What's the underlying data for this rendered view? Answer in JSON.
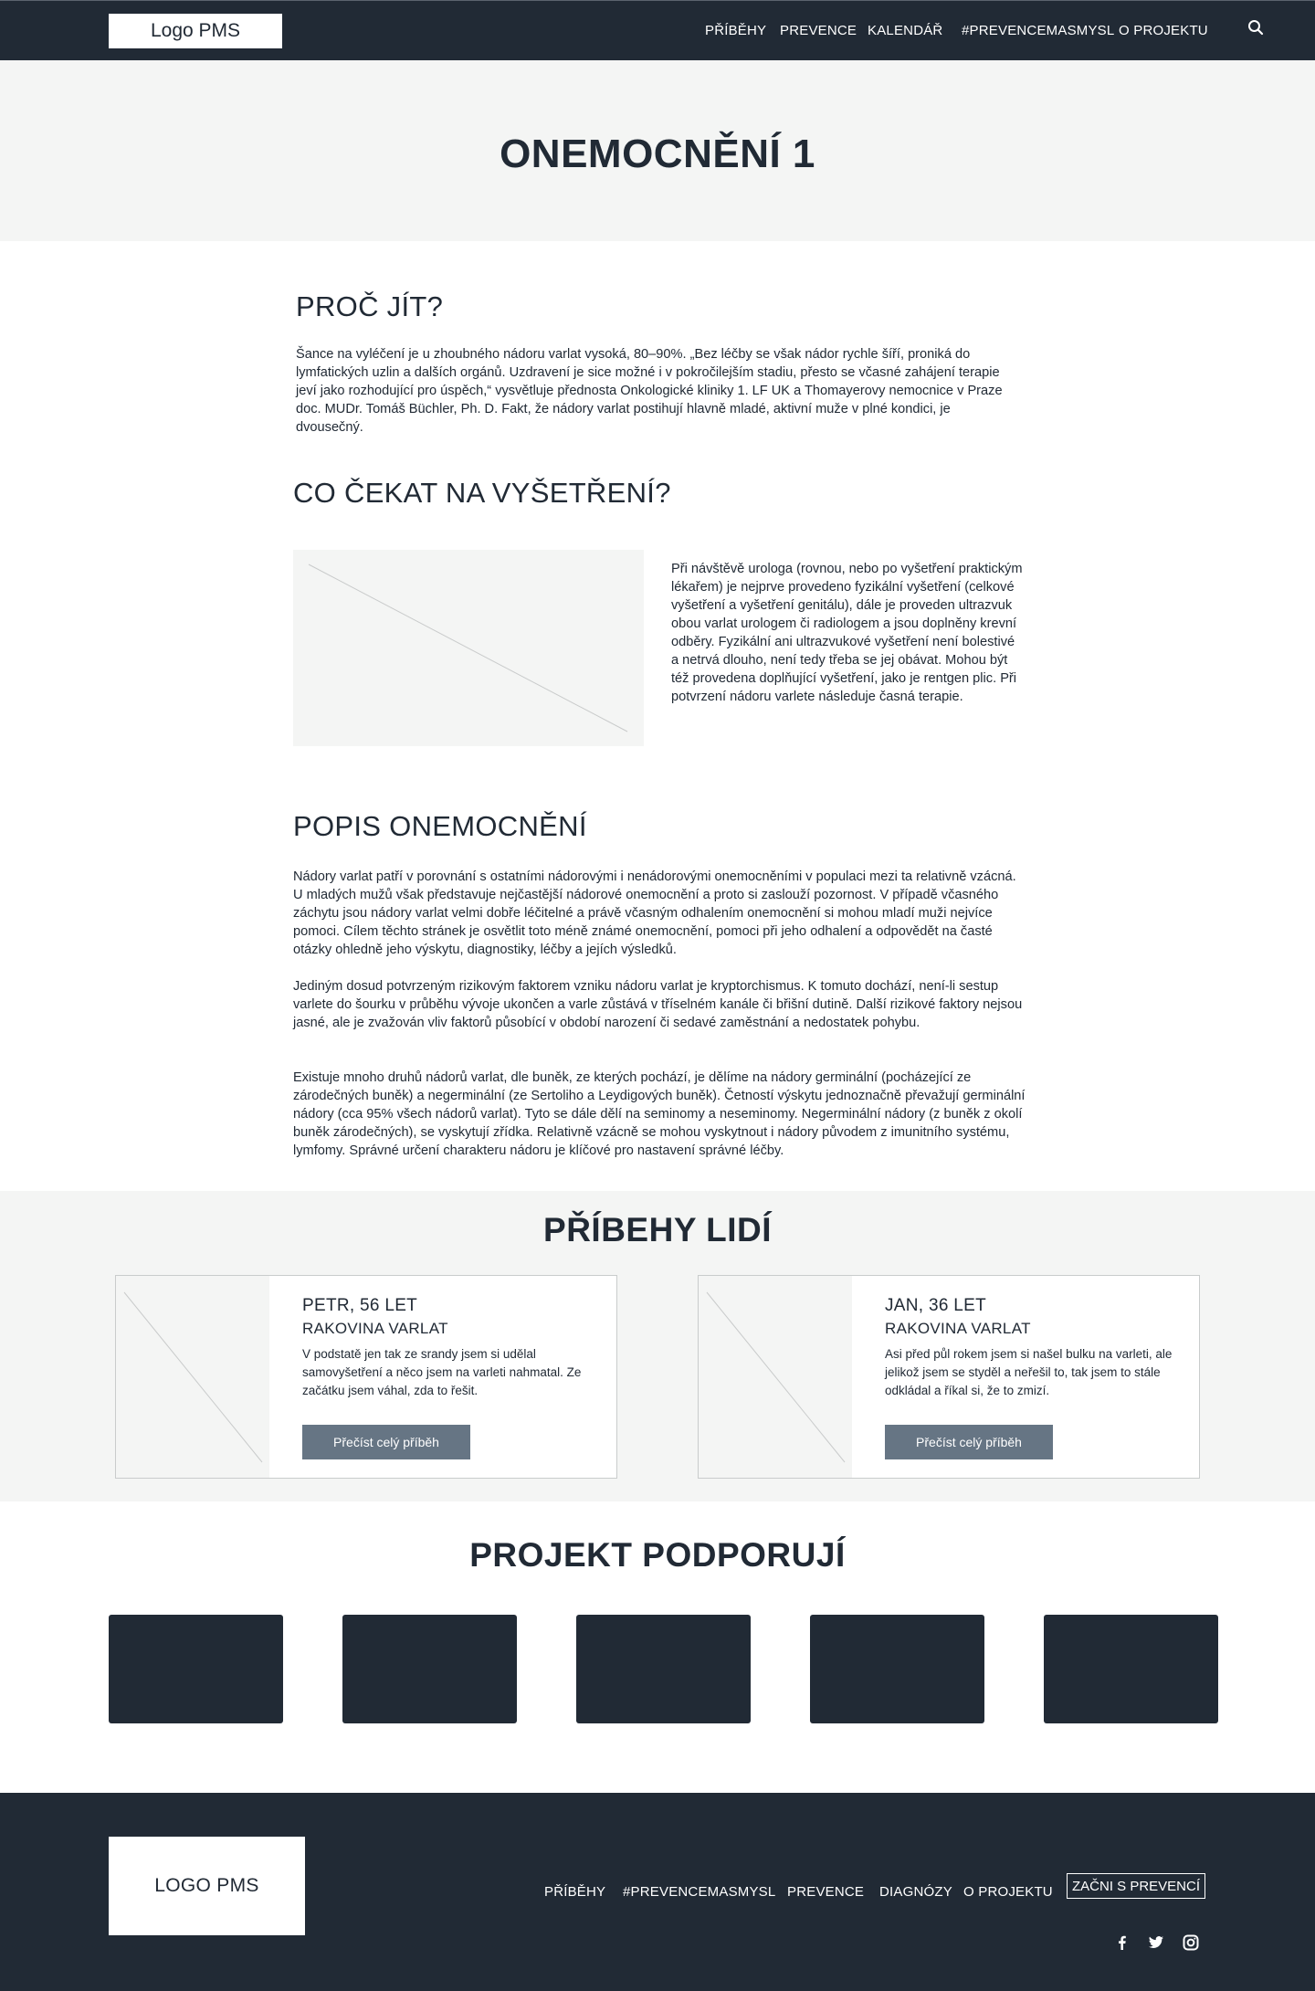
{
  "nav": {
    "logo": "Logo PMS",
    "items": [
      "PŘÍBĚHY",
      "PREVENCE",
      "KALENDÁŘ",
      "#PREVENCEMASMYSL",
      "O PROJEKTU"
    ],
    "search_icon": "search-icon"
  },
  "hero": {
    "title": "ONEMOCNĚNÍ 1"
  },
  "why": {
    "title": "PROČ JÍT?",
    "text": "Šance na vyléčení je u zhoubného nádoru varlat vysoká, 80–90%. „Bez léčby se však nádor rychle šíří, proniká do lymfatických uzlin a dalších orgánů. Uzdravení je sice možné i v pokročilejším stadiu, přesto se včasné zahájení terapie jeví jako rozhodující pro úspěch,“ vysvětluje přednosta Onkologické kliniky 1. LF UK a Thomayerovy nemocnice v Praze doc. MUDr. Tomáš Büchler, Ph. D. Fakt, že nádory varlat postihují hlavně mladé, aktivní muže v plné kondici, je dvousečný."
  },
  "exam": {
    "title": "CO ČEKAT NA VYŠETŘENÍ?",
    "text": "Při návštěvě urologa (rovnou, nebo po vyšetření praktickým lékařem) je nejprve provedeno fyzikální vyšetření (celkové vyšetření a vyšetření genitálu), dále je proveden ultrazvuk obou varlat urologem či radiologem a jsou doplněny krevní odběry. Fyzikální ani ultrazvukové vyšetření není bolestivé a netrvá dlouho, není tedy třeba se jej obávat. Mohou být též provedena doplňující vyšetření, jako je rentgen plic. Při potvrzení nádoru varlete následuje časná terapie."
  },
  "desc": {
    "title": "POPIS ONEMOCNĚNÍ",
    "paragraphs": [
      "Nádory varlat patří v porovnání s ostatními nádorovými i nenádorovými onemocněními v populaci mezi ta relativně vzácná. U mladých mužů však představuje nejčastější nádorové onemocnění a proto si zaslouží pozornost. V případě včasného záchytu jsou nádory varlat velmi dobře léčitelné a právě včasným odhalením onemocnění si mohou mladí muži nejvíce pomoci. Cílem těchto stránek je osvětlit toto méně známé onemocnění, pomoci při jeho odhalení a odpovědět na časté otázky ohledně jeho výskytu, diagnostiky, léčby a jejích výsledků.",
      "Jediným dosud potvrzeným rizikovým faktorem vzniku nádoru varlat je kryptorchismus. K tomuto dochází, není-li sestup varlete do šourku v průběhu vývoje ukončen a varle zůstává v tříselném kanále či břišní dutině. Další rizikové faktory nejsou jasné, ale je zvažován vliv faktorů působící v období narození či sedavé zaměstnání a nedostatek pohybu.",
      "Existuje mnoho druhů nádorů varlat, dle buněk, ze kterých pochází, je dělíme na nádory germinální (pocházející ze zárodečných buněk) a negerminální (ze Sertoliho a Leydigových buněk). Četností výskytu jednoznačně převažují germinální nádory (cca 95% všech nádorů varlat). Tyto se dále dělí na seminomy a neseminomy. Negerminální nádory (z buněk z okolí buněk zárodečných), se vyskytují zřídka. Relativně vzácně se mohou vyskytnout i nádory původem z imunitního systému, lymfomy. Správné určení charakteru nádoru je klíčové pro nastavení správné léčby."
    ]
  },
  "stories": {
    "title": "PŘÍBEHY LIDÍ",
    "cards": [
      {
        "name": "PETR, 56 LET",
        "diagnosis": "RAKOVINA VARLAT",
        "text": "V podstatě jen tak ze srandy jsem si udělal samovyšetření a něco jsem na varleti nahmatal. Ze začátku jsem váhal, zda to řešit.",
        "button": "Přečíst celý příběh"
      },
      {
        "name": "JAN, 36 LET",
        "diagnosis": "RAKOVINA VARLAT",
        "text": "Asi před půl rokem jsem si našel bulku na varleti, ale jelikož jsem se styděl a neřešil to, tak jsem to stále odkládal a říkal si, že to zmizí.",
        "button": "Přečíst celý příběh"
      }
    ]
  },
  "sponsors": {
    "title": "PROJEKT PODPORUJÍ",
    "count": 5
  },
  "footer": {
    "logo": "LOGO PMS",
    "items": [
      "PŘÍBĚHY",
      "#PREVENCEMASMYSL",
      "PREVENCE",
      "DIAGNÓZY",
      "O PROJEKTU"
    ],
    "cta": "ZAČNI S PREVENCÍ",
    "social": [
      "facebook-icon",
      "twitter-icon",
      "instagram-icon"
    ]
  },
  "colors": {
    "dark": "#212a35",
    "light_bg": "#f4f5f4",
    "button": "#667584"
  }
}
